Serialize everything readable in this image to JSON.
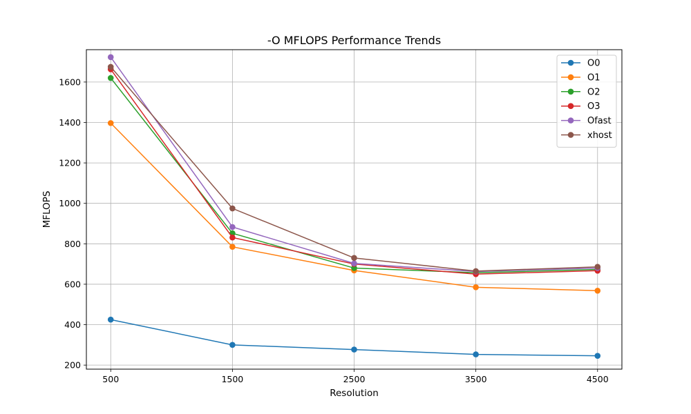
{
  "chart_data": {
    "type": "line",
    "title": "-O MFLOPS Performance Trends",
    "xlabel": "Resolution",
    "ylabel": "MFLOPS",
    "x": [
      500,
      1500,
      2500,
      3500,
      4500
    ],
    "xticks": [
      "500",
      "1500",
      "2500",
      "3500",
      "4500"
    ],
    "yticks": [
      200,
      400,
      600,
      800,
      1000,
      1200,
      1400,
      1600
    ],
    "xlim": [
      300,
      4700
    ],
    "ylim": [
      180,
      1760
    ],
    "grid": true,
    "legend_position": "top-right",
    "marker": "circle",
    "series": [
      {
        "name": "O0",
        "color": "#1f77b4",
        "values": [
          425,
          300,
          277,
          253,
          246
        ]
      },
      {
        "name": "O1",
        "color": "#ff7f0e",
        "values": [
          1397,
          785,
          668,
          585,
          568
        ]
      },
      {
        "name": "O2",
        "color": "#2ca02c",
        "values": [
          1620,
          852,
          680,
          657,
          673
        ]
      },
      {
        "name": "O3",
        "color": "#d62728",
        "values": [
          1663,
          831,
          700,
          650,
          667
        ]
      },
      {
        "name": "Ofast",
        "color": "#9467bd",
        "values": [
          1723,
          883,
          703,
          663,
          680
        ]
      },
      {
        "name": "xhost",
        "color": "#8c564b",
        "values": [
          1675,
          975,
          730,
          665,
          686
        ]
      }
    ]
  }
}
